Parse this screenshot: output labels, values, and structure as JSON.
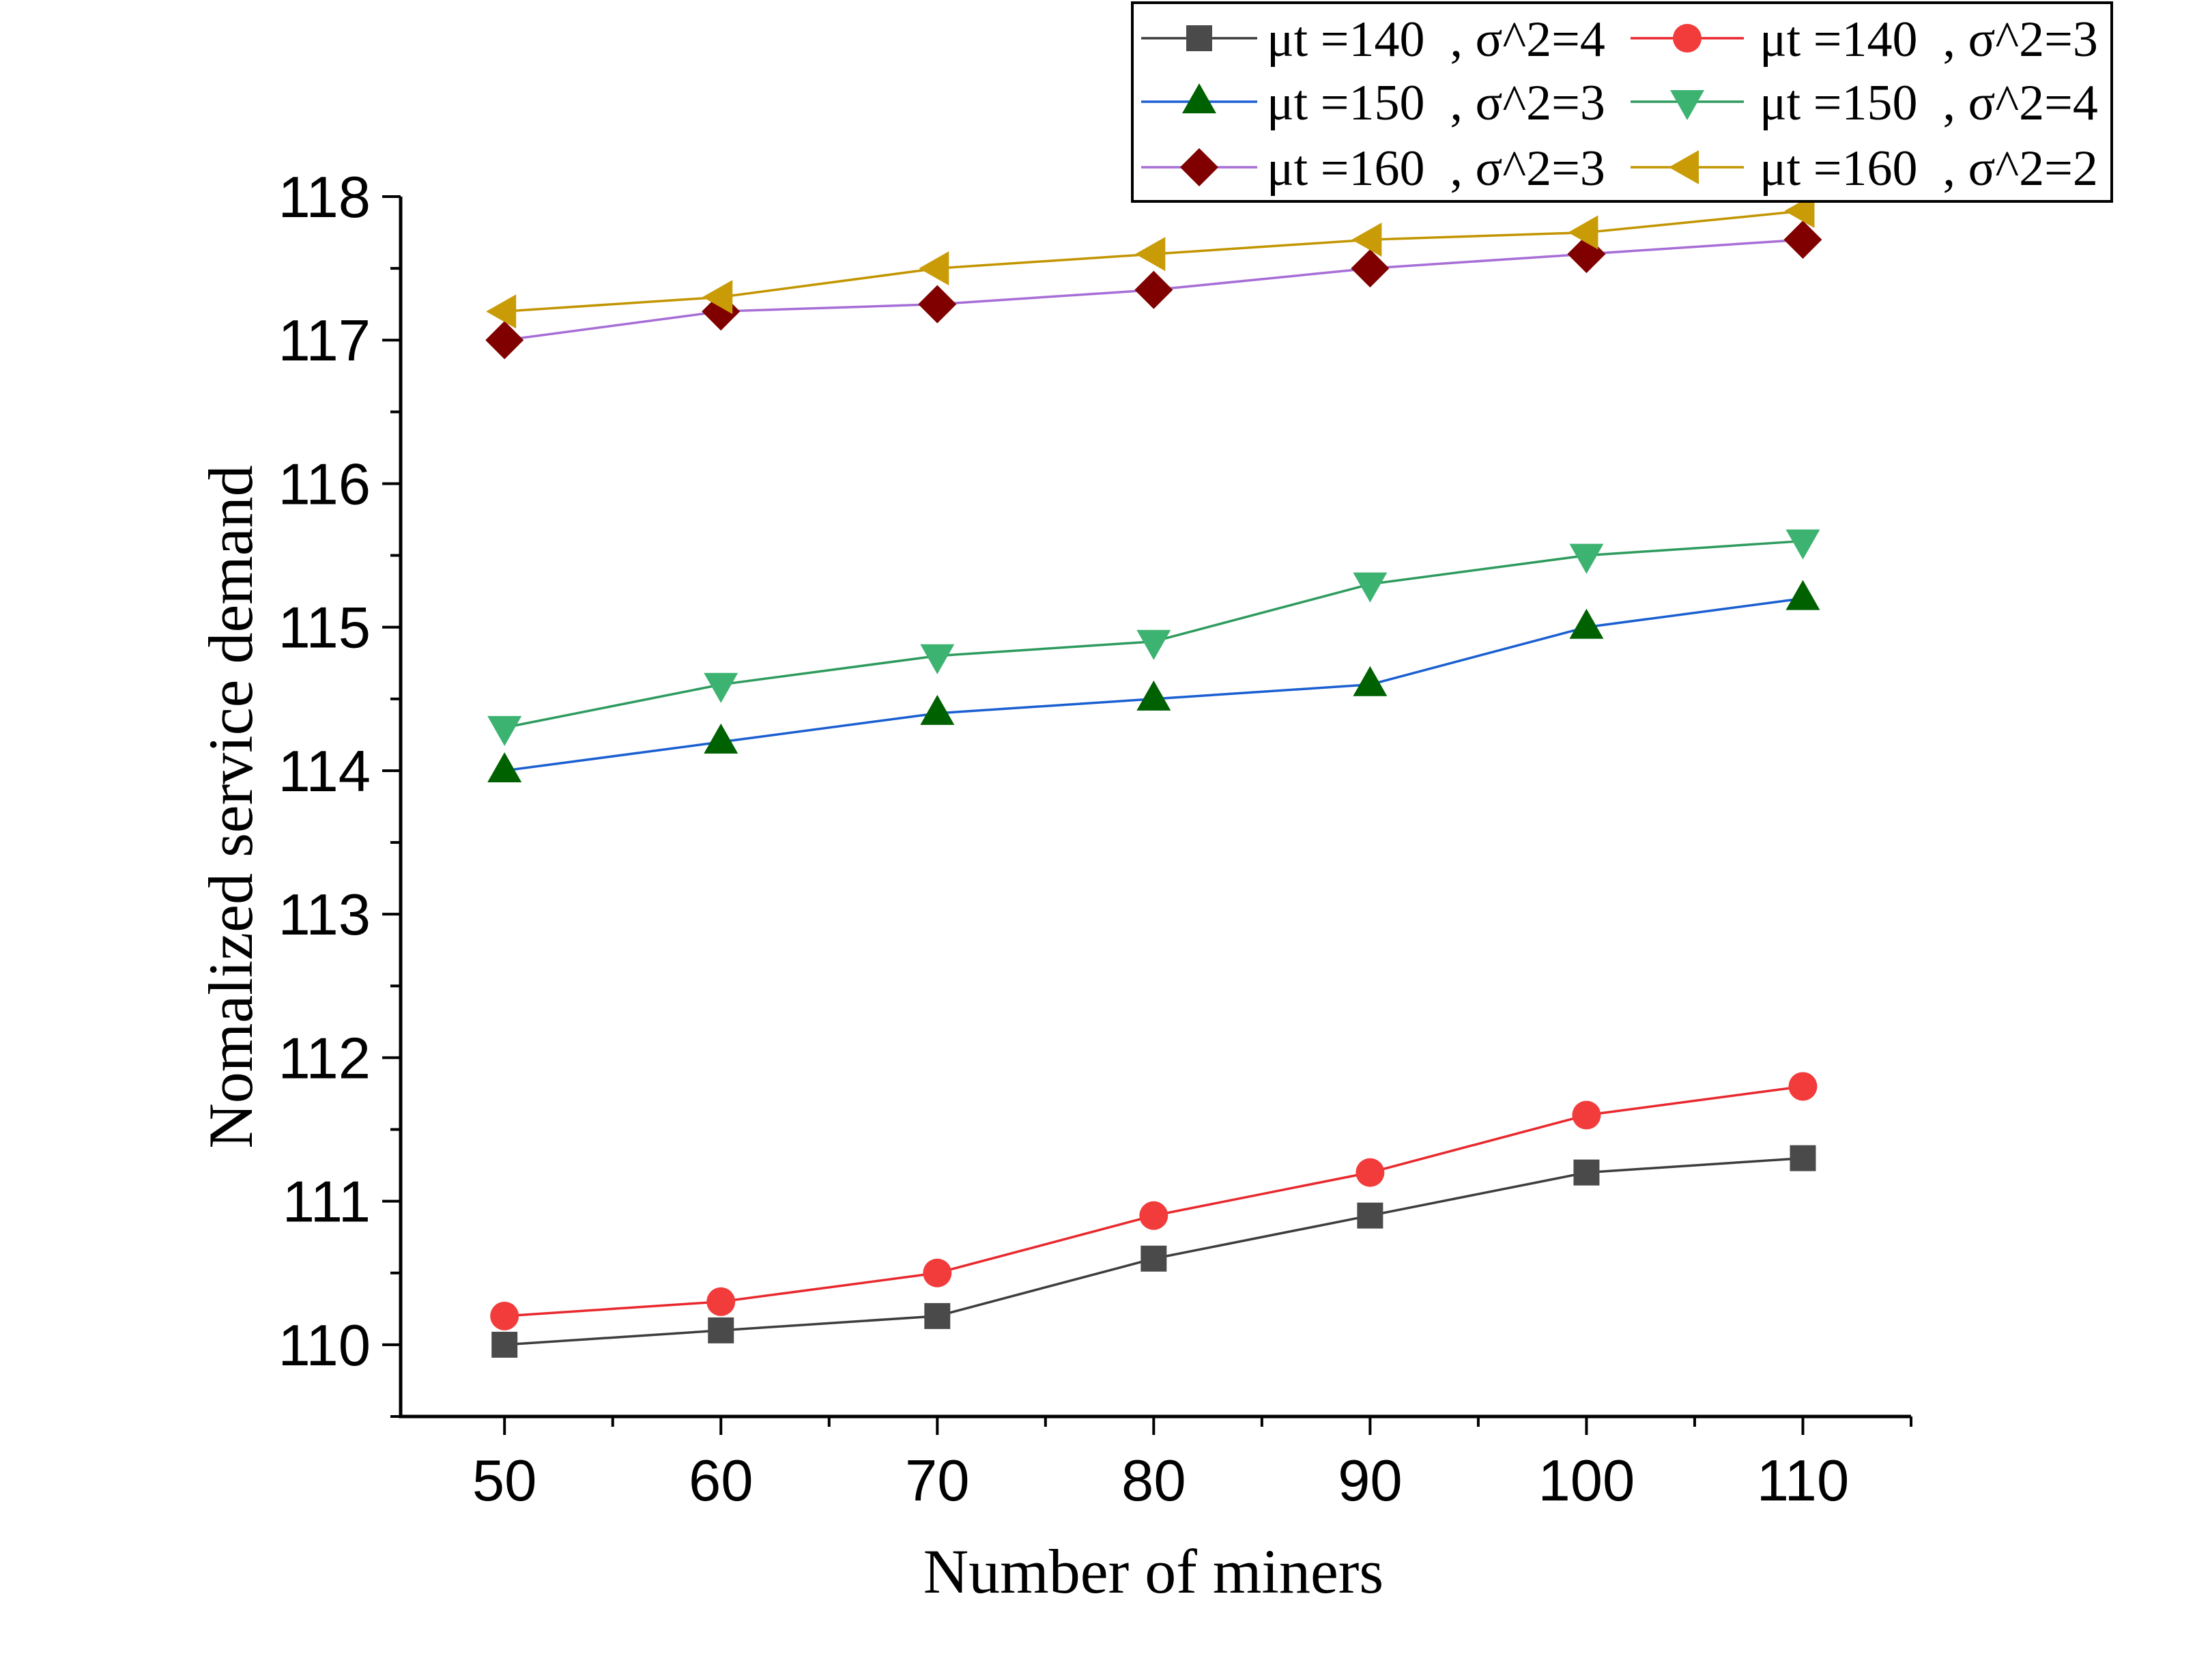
{
  "chart_data": {
    "type": "line",
    "xlabel": "Number of miners",
    "ylabel": "Nomalized service demand",
    "x": [
      50,
      60,
      70,
      80,
      90,
      100,
      110
    ],
    "xlim": [
      45.2,
      115
    ],
    "ylim": [
      109.5,
      118
    ],
    "xticks": [
      50,
      60,
      70,
      80,
      90,
      100,
      110
    ],
    "yticks": [
      110,
      111,
      112,
      113,
      114,
      115,
      116,
      117,
      118
    ],
    "grid": false,
    "legend": "top-right",
    "series": [
      {
        "name": "μt =140  , σ^2=4",
        "marker": "square",
        "line_color": "#3d3d3d",
        "marker_color": "#4a4a4a",
        "values": [
          110.0,
          110.1,
          110.2,
          110.6,
          110.9,
          111.2,
          111.3
        ]
      },
      {
        "name": "μt =140  , σ^2=3",
        "marker": "circle",
        "line_color": "#e8282d",
        "marker_color": "#f23c3c",
        "values": [
          110.2,
          110.3,
          110.5,
          110.9,
          111.2,
          111.6,
          111.8
        ]
      },
      {
        "name": "μt =150  , σ^2=3",
        "marker": "triangle-up",
        "line_color": "#1a5fd1",
        "marker_color": "#006100",
        "values": [
          114.0,
          114.2,
          114.4,
          114.5,
          114.6,
          115.0,
          115.2
        ]
      },
      {
        "name": "μt =150  , σ^2=4",
        "marker": "triangle-down",
        "line_color": "#2e9b5e",
        "marker_color": "#3cb371",
        "values": [
          114.3,
          114.6,
          114.8,
          114.9,
          115.3,
          115.5,
          115.6
        ]
      },
      {
        "name": "μt =160  , σ^2=3",
        "marker": "diamond",
        "line_color": "#a66ed6",
        "marker_color": "#800000",
        "values": [
          117.0,
          117.2,
          117.25,
          117.35,
          117.5,
          117.6,
          117.7
        ]
      },
      {
        "name": "μt =160  , σ^2=2",
        "marker": "triangle-left",
        "line_color": "#c29500",
        "marker_color": "#c99b06",
        "values": [
          117.2,
          117.3,
          117.5,
          117.6,
          117.7,
          117.75,
          117.9
        ]
      }
    ]
  },
  "colors": {
    "axis": "#000000",
    "background": "#ffffff",
    "legend_border": "#000000",
    "legend_fill": "#ffffff"
  }
}
